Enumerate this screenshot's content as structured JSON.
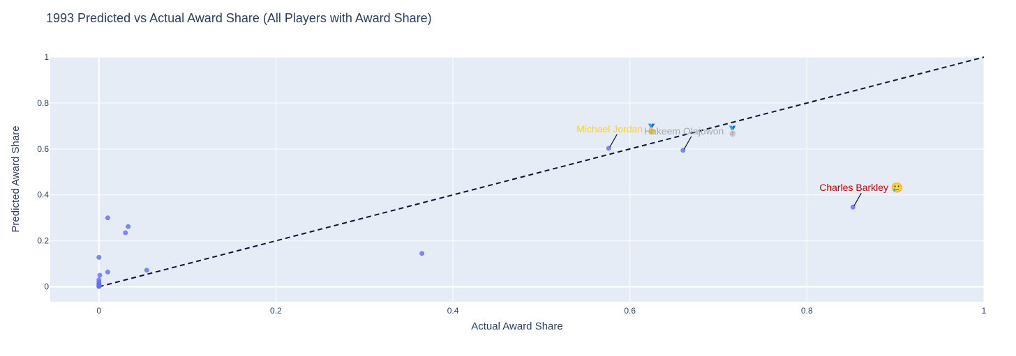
{
  "chart_data": {
    "type": "scatter",
    "title": "1993 Predicted vs Actual Award Share (All Players with Award Share)",
    "xlabel": "Actual Award Share",
    "ylabel": "Predicted Award Share",
    "xlim": [
      -0.055,
      1.0
    ],
    "ylim": [
      -0.065,
      1.0
    ],
    "x_ticks": [
      0,
      0.2,
      0.4,
      0.6,
      0.8,
      1
    ],
    "x_tick_labels": [
      "0",
      "0.2",
      "0.4",
      "0.6",
      "0.8",
      "1"
    ],
    "y_ticks": [
      0,
      0.2,
      0.4,
      0.6,
      0.8,
      1
    ],
    "y_tick_labels": [
      "0",
      "0.2",
      "0.4",
      "0.6",
      "0.8",
      "1"
    ],
    "grid": true,
    "points": {
      "x": [
        0.576,
        0.66,
        0.852,
        0.365,
        0.01,
        0.033,
        0.03,
        0.0,
        0.01,
        0.054,
        0.001,
        0.0,
        0.0,
        0.0,
        0.0,
        0.0,
        0.0,
        0.0
      ],
      "y": [
        0.603,
        0.594,
        0.347,
        0.145,
        0.3,
        0.262,
        0.235,
        0.128,
        0.064,
        0.072,
        0.05,
        0.03,
        0.02,
        0.012,
        0.008,
        0.005,
        0.003,
        0.001
      ]
    },
    "reference_line": {
      "x": [
        0,
        1
      ],
      "y": [
        0,
        1
      ],
      "style": "dashed"
    },
    "annotations": [
      {
        "text": "Michael Jordan 🥇",
        "x": 0.576,
        "y": 0.603,
        "color": "#FFD700"
      },
      {
        "text": "Hakeem Olajuwon 🥈",
        "x": 0.66,
        "y": 0.594,
        "color": "#A9A9A9"
      },
      {
        "text": "Charles Barkley 🥲",
        "x": 0.852,
        "y": 0.347,
        "color": "#D40000"
      }
    ],
    "colors": {
      "plot_bg": "#E5ECF6",
      "grid": "#FFFFFF",
      "marker": "#636EFA",
      "text": "#2A3F5F",
      "line": "#0B1532"
    }
  }
}
